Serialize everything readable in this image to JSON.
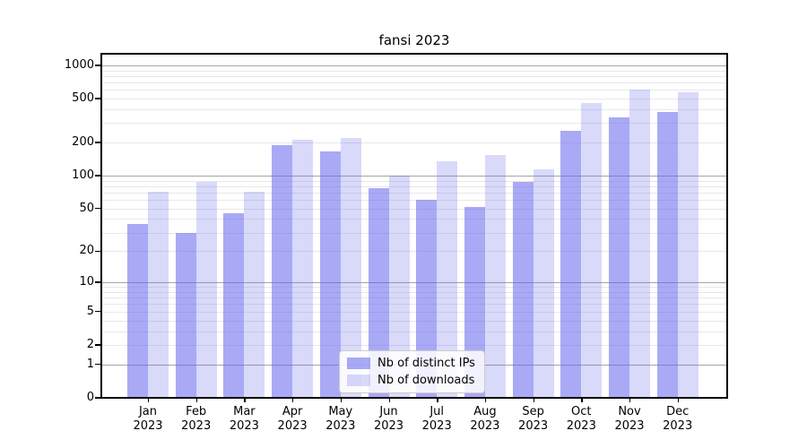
{
  "title": "fansi 2023",
  "colors": {
    "ips_fill": "rgba(98,98,236,0.55)",
    "downloads_fill": "rgba(98,98,236,0.24)",
    "grid_major": "#a5a5a5",
    "grid_minor": "#e8e8e8",
    "spine": "#000000"
  },
  "legend": {
    "items": [
      {
        "label": "Nb of distinct IPs"
      },
      {
        "label": "Nb of downloads"
      }
    ]
  },
  "chart_data": {
    "type": "bar",
    "title": "fansi 2023",
    "categories": [
      "Jan 2023",
      "Feb 2023",
      "Mar 2023",
      "Apr 2023",
      "May 2023",
      "Jun 2023",
      "Jul 2023",
      "Aug 2023",
      "Sep 2023",
      "Oct 2023",
      "Nov 2023",
      "Dec 2023"
    ],
    "series": [
      {
        "name": "Nb of distinct IPs",
        "values": [
          36,
          30,
          45,
          190,
          165,
          77,
          60,
          52,
          87,
          255,
          335,
          375
        ]
      },
      {
        "name": "Nb of downloads",
        "values": [
          72,
          87,
          72,
          213,
          218,
          101,
          135,
          155,
          115,
          455,
          600,
          575
        ]
      }
    ],
    "xlabel": "",
    "ylabel": "",
    "yscale": "log10(1+x)",
    "y_ticks": [
      1000,
      500,
      200,
      100,
      50,
      20,
      10,
      5,
      2,
      1,
      0
    ],
    "ylim": [
      0,
      1270
    ],
    "grid": true,
    "legend_position": "lower center"
  }
}
